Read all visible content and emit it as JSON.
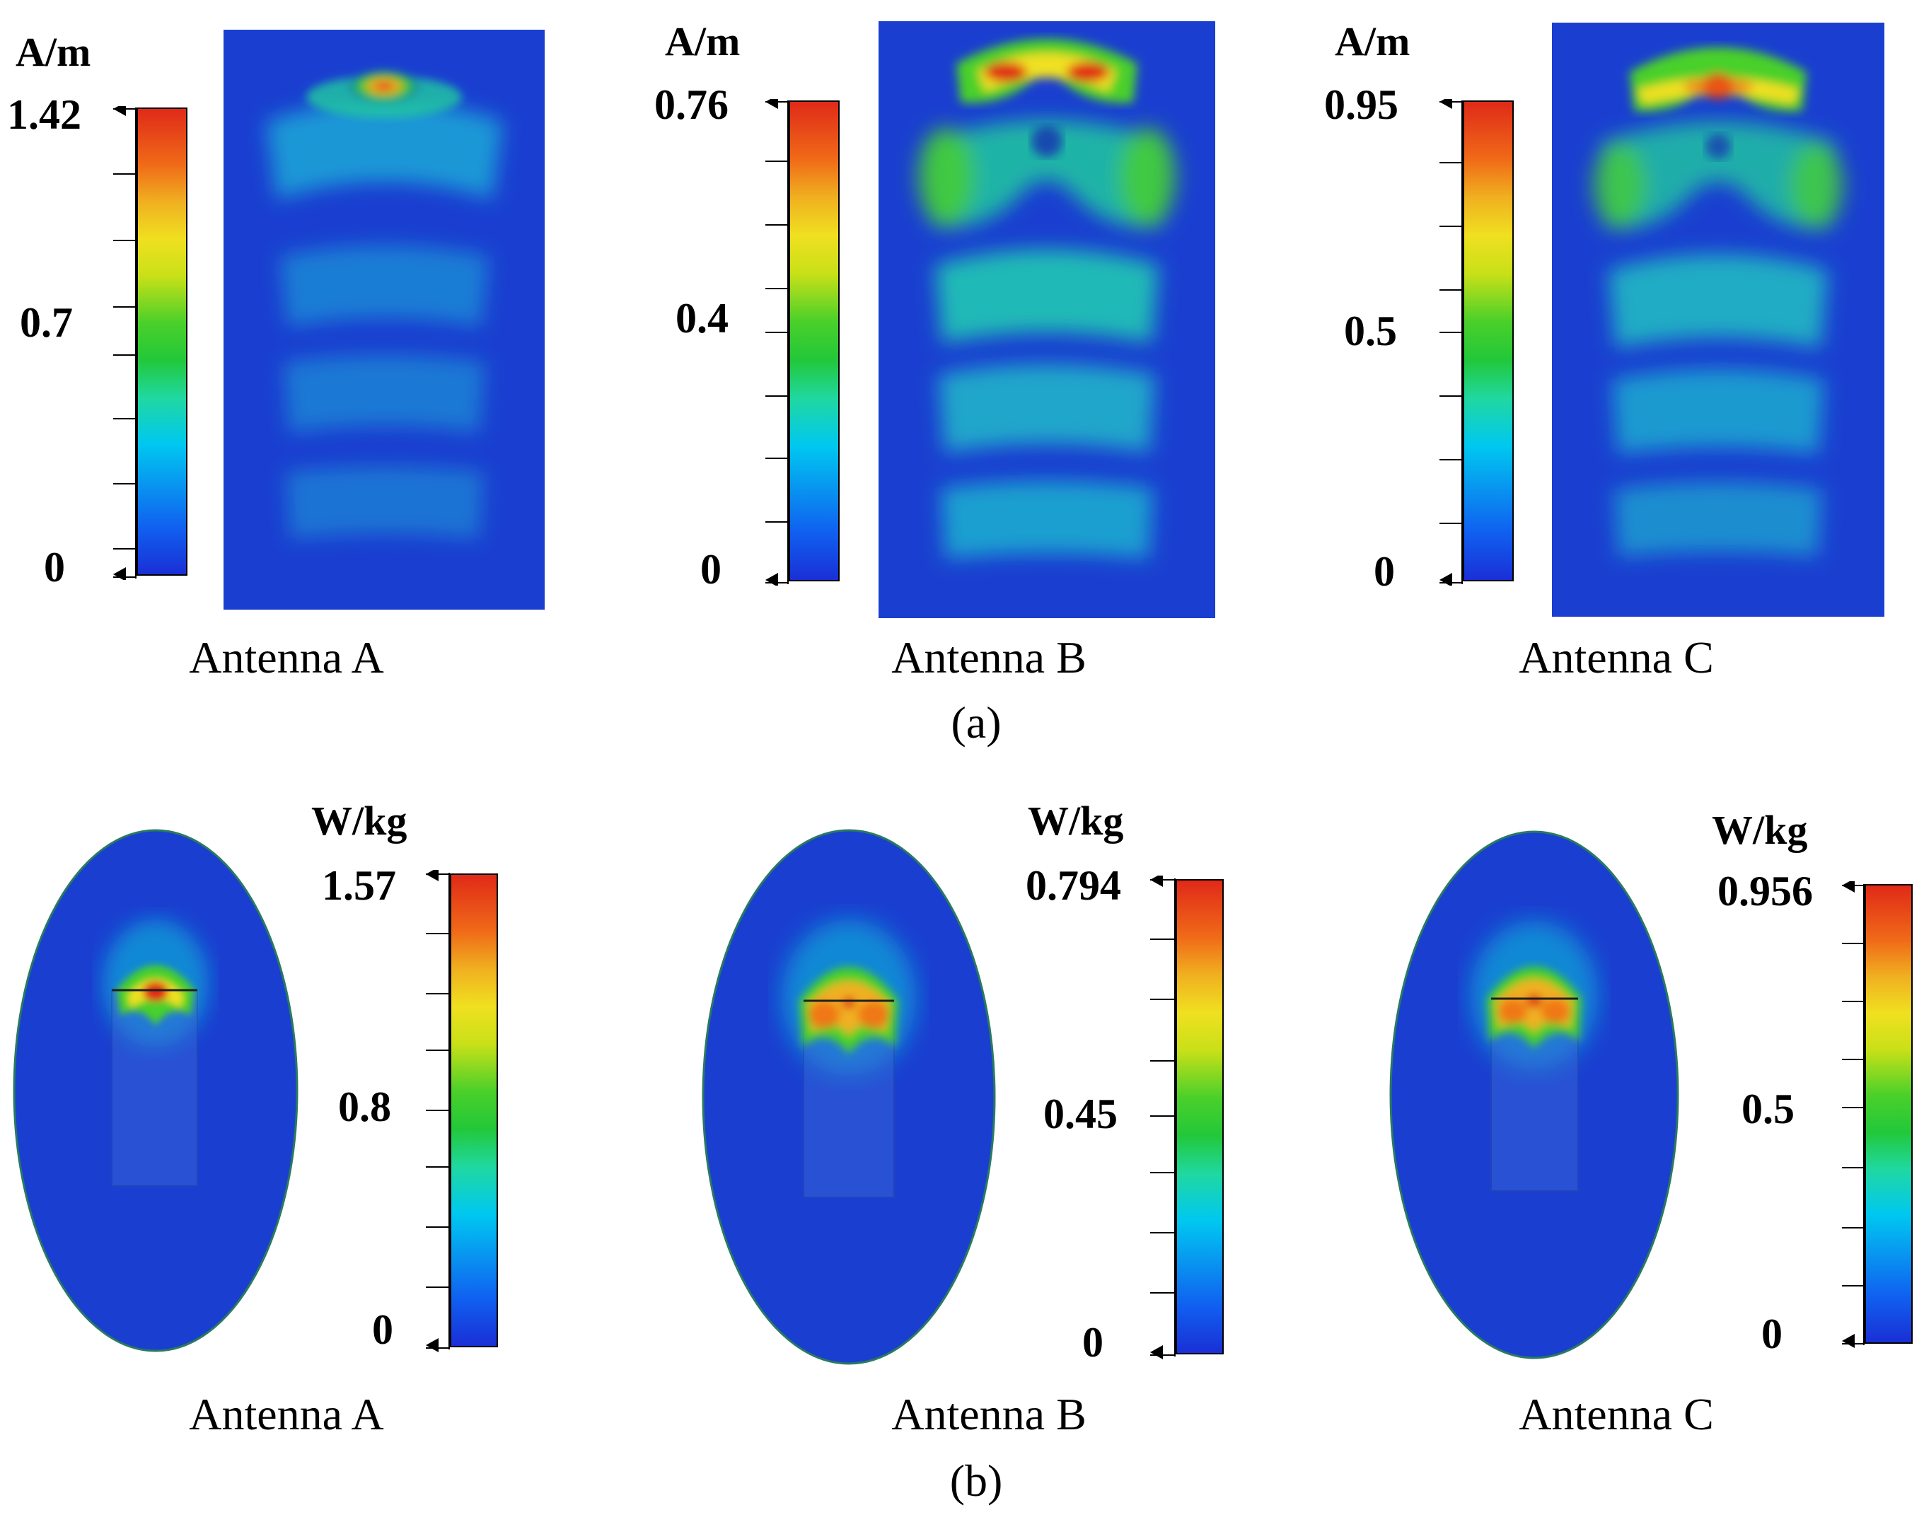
{
  "figure_a": {
    "label": "(a)",
    "panels": [
      {
        "caption": "Antenna A",
        "unit": "A/m",
        "max_label": "1.42",
        "mid_label": "0.7",
        "min_label": "0"
      },
      {
        "caption": "Antenna B",
        "unit": "A/m",
        "max_label": "0.76",
        "mid_label": "0.4",
        "min_label": "0"
      },
      {
        "caption": "Antenna C",
        "unit": "A/m",
        "max_label": "0.95",
        "mid_label": "0.5",
        "min_label": "0"
      }
    ]
  },
  "figure_b": {
    "label": "(b)",
    "panels": [
      {
        "caption": "Antenna A",
        "unit": "W/kg",
        "max_label": "1.57",
        "mid_label": "0.8",
        "min_label": "0"
      },
      {
        "caption": "Antenna B",
        "unit": "W/kg",
        "max_label": "0.794",
        "mid_label": "0.45",
        "min_label": "0"
      },
      {
        "caption": "Antenna C",
        "unit": "W/kg",
        "max_label": "0.956",
        "mid_label": "0.5",
        "min_label": "0"
      }
    ]
  },
  "colors": {
    "field_background": "#1a3fd0",
    "colormap": [
      "#1a2fd6",
      "#00c8f0",
      "#22c83a",
      "#f0e020",
      "#e02a18"
    ]
  }
}
